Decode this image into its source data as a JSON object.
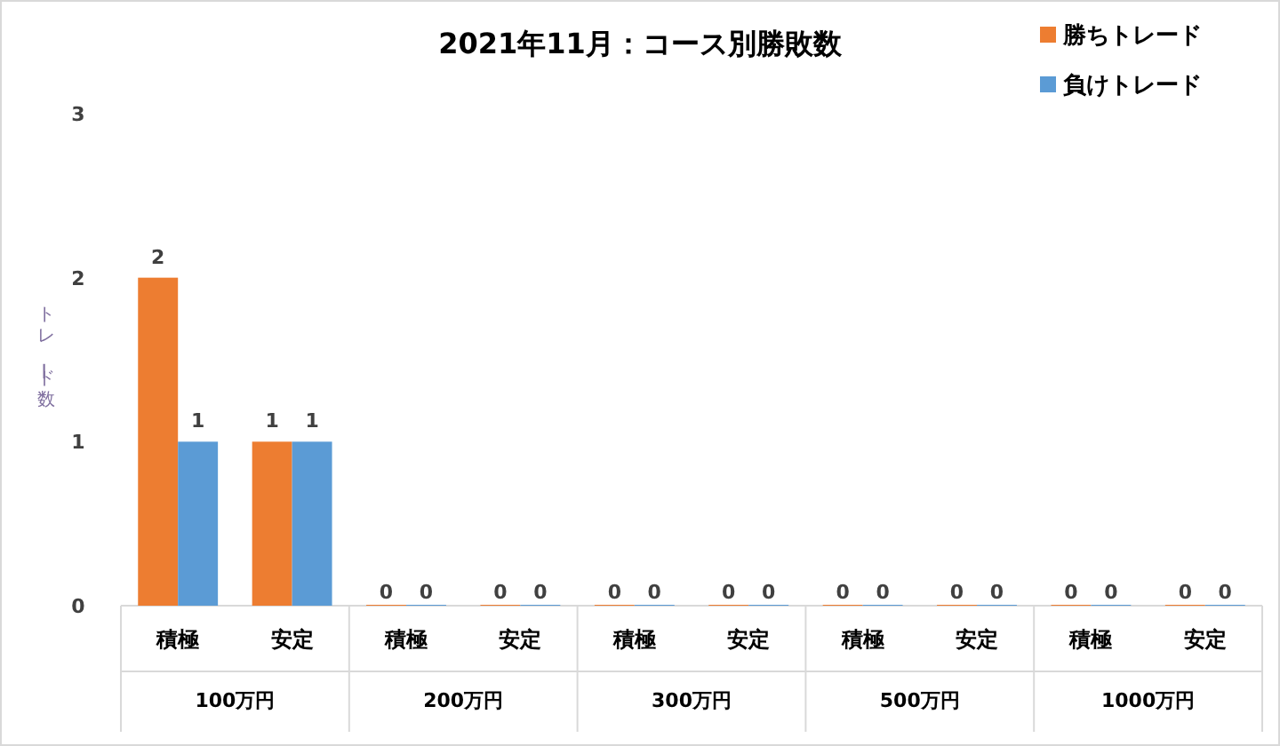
{
  "chart_data": {
    "type": "bar",
    "title": "2021年11月：コース別勝敗数",
    "ylabel": "トレード数",
    "categories": [
      "積極",
      "安定",
      "積極",
      "安定",
      "積極",
      "安定",
      "積極",
      "安定",
      "積極",
      "安定"
    ],
    "series": [
      {
        "name": "勝ちトレード",
        "color": "#ed7d31",
        "values": [
          2,
          1,
          0,
          0,
          0,
          0,
          0,
          0,
          0,
          0
        ]
      },
      {
        "name": "負けトレード",
        "color": "#5b9bd5",
        "values": [
          1,
          1,
          0,
          0,
          0,
          0,
          0,
          0,
          0,
          0
        ]
      }
    ],
    "annotations": [
      "100万円",
      "200万円",
      "300万円",
      "500万円",
      "1000万円"
    ],
    "ylim": [
      0,
      3
    ],
    "yticks": [
      0,
      1,
      2,
      3
    ],
    "data_labels": true,
    "legend": "top right"
  }
}
